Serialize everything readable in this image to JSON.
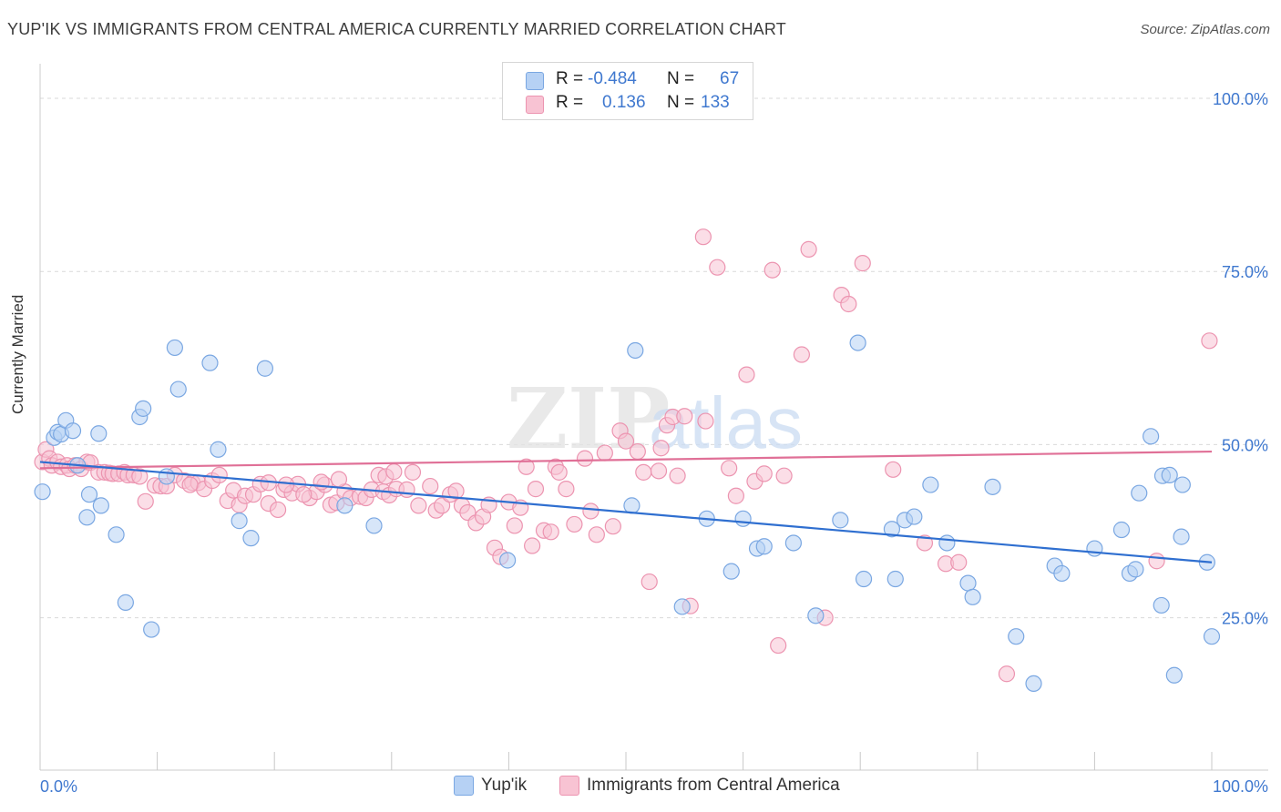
{
  "title": "YUP'IK VS IMMIGRANTS FROM CENTRAL AMERICA CURRENTLY MARRIED CORRELATION CHART",
  "source": "Source: ZipAtlas.com",
  "watermark": {
    "zip": "ZIP",
    "atlas": "atlas"
  },
  "colors": {
    "blue_fill": "#b6d1f4",
    "blue_stroke": "#7aa7e2",
    "blue_line": "#2f6fd0",
    "pink_fill": "#f8c3d3",
    "pink_stroke": "#ec94b0",
    "pink_line": "#e07097",
    "tick_label": "#3f78cf",
    "grid": "#d9d9d9"
  },
  "legend": {
    "row1": {
      "r_label": "R =",
      "r_value": "-0.484",
      "n_label": "N =",
      "n_value": "67"
    },
    "row2": {
      "r_label": "R =",
      "r_value": "0.136",
      "n_label": "N =",
      "n_value": "133"
    }
  },
  "bottom_legend": {
    "series1": "Yup'ik",
    "series2": "Immigrants from Central America"
  },
  "chart_data": {
    "type": "scatter",
    "title": "YUP'IK VS IMMIGRANTS FROM CENTRAL AMERICA CURRENTLY MARRIED CORRELATION CHART",
    "xlabel": "",
    "ylabel": "Currently Married",
    "xlim": [
      0,
      100
    ],
    "ylim": [
      3,
      105
    ],
    "x_tick_labels": [
      "0.0%",
      "100.0%"
    ],
    "y_tick_labels": [
      "25.0%",
      "50.0%",
      "75.0%",
      "100.0%"
    ],
    "y_ticks": [
      25,
      50,
      75,
      100
    ],
    "grid": true,
    "legend_position": "top-center",
    "series": [
      {
        "name": "Yup'ik",
        "trend": {
          "x": [
            0,
            100
          ],
          "y": [
            47.5,
            33.0
          ]
        },
        "points": [
          [
            0.2,
            43.2
          ],
          [
            1.2,
            51.0
          ],
          [
            1.5,
            51.8
          ],
          [
            1.8,
            51.5
          ],
          [
            2.2,
            53.5
          ],
          [
            2.8,
            52.0
          ],
          [
            3.2,
            47.0
          ],
          [
            4.0,
            39.5
          ],
          [
            4.2,
            42.8
          ],
          [
            5.0,
            51.6
          ],
          [
            5.2,
            41.2
          ],
          [
            6.5,
            37.0
          ],
          [
            7.3,
            27.2
          ],
          [
            8.5,
            54.0
          ],
          [
            8.8,
            55.2
          ],
          [
            9.5,
            23.3
          ],
          [
            10.8,
            45.4
          ],
          [
            11.5,
            64.0
          ],
          [
            11.8,
            58.0
          ],
          [
            14.5,
            61.8
          ],
          [
            15.2,
            49.3
          ],
          [
            17.0,
            39.0
          ],
          [
            18.0,
            36.5
          ],
          [
            19.2,
            61.0
          ],
          [
            26.0,
            41.2
          ],
          [
            28.5,
            38.3
          ],
          [
            39.9,
            33.3
          ],
          [
            50.5,
            41.2
          ],
          [
            50.8,
            63.6
          ],
          [
            54.8,
            26.6
          ],
          [
            56.9,
            39.3
          ],
          [
            59.0,
            31.7
          ],
          [
            60.0,
            39.3
          ],
          [
            61.2,
            35.0
          ],
          [
            61.8,
            35.3
          ],
          [
            64.3,
            35.8
          ],
          [
            66.2,
            25.3
          ],
          [
            68.3,
            39.1
          ],
          [
            69.8,
            64.7
          ],
          [
            70.3,
            30.6
          ],
          [
            72.7,
            37.8
          ],
          [
            73.0,
            30.6
          ],
          [
            73.8,
            39.1
          ],
          [
            74.6,
            39.6
          ],
          [
            76.0,
            44.2
          ],
          [
            77.4,
            35.8
          ],
          [
            79.2,
            30.0
          ],
          [
            79.6,
            28.0
          ],
          [
            81.3,
            43.9
          ],
          [
            83.3,
            22.3
          ],
          [
            84.8,
            15.5
          ],
          [
            86.6,
            32.5
          ],
          [
            87.2,
            31.4
          ],
          [
            90.0,
            35.0
          ],
          [
            92.3,
            37.7
          ],
          [
            93.0,
            31.4
          ],
          [
            93.5,
            32.0
          ],
          [
            93.8,
            43.0
          ],
          [
            94.8,
            51.2
          ],
          [
            95.7,
            26.8
          ],
          [
            95.8,
            45.5
          ],
          [
            96.4,
            45.6
          ],
          [
            96.8,
            16.7
          ],
          [
            97.4,
            36.7
          ],
          [
            97.5,
            44.2
          ],
          [
            99.6,
            33.0
          ],
          [
            100.0,
            22.3
          ]
        ]
      },
      {
        "name": "Immigrants from Central America",
        "trend": {
          "x": [
            0,
            100
          ],
          "y": [
            46.6,
            49.0
          ]
        },
        "points": [
          [
            0.2,
            47.5
          ],
          [
            0.5,
            49.3
          ],
          [
            0.8,
            48.0
          ],
          [
            1.0,
            47.0
          ],
          [
            1.5,
            47.5
          ],
          [
            1.8,
            46.8
          ],
          [
            2.3,
            47.0
          ],
          [
            2.5,
            46.5
          ],
          [
            3.0,
            47.0
          ],
          [
            3.5,
            46.5
          ],
          [
            4.0,
            47.5
          ],
          [
            4.3,
            47.4
          ],
          [
            5.0,
            46.0
          ],
          [
            5.5,
            46.0
          ],
          [
            5.9,
            45.9
          ],
          [
            6.2,
            45.8
          ],
          [
            6.7,
            45.8
          ],
          [
            7.2,
            46.0
          ],
          [
            7.5,
            45.6
          ],
          [
            8.0,
            45.6
          ],
          [
            8.5,
            45.4
          ],
          [
            9.0,
            41.8
          ],
          [
            9.8,
            44.1
          ],
          [
            10.3,
            44.0
          ],
          [
            10.8,
            44.0
          ],
          [
            11.5,
            45.6
          ],
          [
            12.3,
            44.8
          ],
          [
            13.0,
            44.5
          ],
          [
            13.5,
            44.5
          ],
          [
            14.0,
            43.6
          ],
          [
            14.7,
            44.8
          ],
          [
            15.3,
            45.6
          ],
          [
            16.0,
            41.9
          ],
          [
            16.5,
            43.4
          ],
          [
            17.0,
            41.3
          ],
          [
            17.5,
            42.6
          ],
          [
            18.2,
            42.8
          ],
          [
            18.8,
            44.3
          ],
          [
            19.5,
            41.5
          ],
          [
            20.3,
            40.6
          ],
          [
            20.8,
            43.5
          ],
          [
            21.5,
            43.0
          ],
          [
            22.0,
            44.3
          ],
          [
            23.0,
            42.3
          ],
          [
            23.6,
            43.2
          ],
          [
            24.3,
            44.2
          ],
          [
            24.8,
            41.3
          ],
          [
            25.3,
            41.6
          ],
          [
            26.0,
            43.2
          ],
          [
            26.5,
            42.3
          ],
          [
            27.3,
            42.5
          ],
          [
            27.8,
            42.3
          ],
          [
            28.3,
            43.5
          ],
          [
            28.9,
            45.6
          ],
          [
            29.3,
            43.2
          ],
          [
            29.8,
            42.7
          ],
          [
            30.4,
            43.6
          ],
          [
            31.3,
            43.5
          ],
          [
            31.8,
            46.0
          ],
          [
            32.3,
            41.2
          ],
          [
            33.3,
            44.0
          ],
          [
            33.8,
            40.5
          ],
          [
            34.3,
            41.2
          ],
          [
            35.0,
            42.8
          ],
          [
            35.5,
            43.3
          ],
          [
            36.0,
            41.2
          ],
          [
            36.5,
            40.2
          ],
          [
            37.2,
            38.7
          ],
          [
            37.8,
            39.6
          ],
          [
            38.3,
            41.3
          ],
          [
            38.8,
            35.1
          ],
          [
            39.3,
            33.8
          ],
          [
            40.0,
            41.7
          ],
          [
            40.5,
            38.3
          ],
          [
            41.0,
            40.9
          ],
          [
            41.5,
            46.8
          ],
          [
            42.0,
            35.4
          ],
          [
            42.3,
            43.6
          ],
          [
            43.0,
            37.6
          ],
          [
            43.6,
            37.4
          ],
          [
            44.0,
            46.8
          ],
          [
            44.3,
            46.0
          ],
          [
            44.9,
            43.6
          ],
          [
            45.6,
            38.5
          ],
          [
            46.5,
            48.0
          ],
          [
            47.0,
            40.4
          ],
          [
            47.5,
            37.0
          ],
          [
            48.2,
            48.8
          ],
          [
            48.9,
            38.2
          ],
          [
            49.5,
            52.0
          ],
          [
            50.0,
            50.5
          ],
          [
            51.0,
            49.0
          ],
          [
            51.5,
            46.0
          ],
          [
            52.0,
            30.2
          ],
          [
            52.8,
            46.2
          ],
          [
            53.5,
            52.8
          ],
          [
            54.0,
            54.0
          ],
          [
            54.4,
            45.5
          ],
          [
            55.0,
            54.1
          ],
          [
            55.5,
            26.7
          ],
          [
            56.8,
            53.4
          ],
          [
            57.8,
            75.6
          ],
          [
            58.8,
            46.6
          ],
          [
            59.4,
            42.6
          ],
          [
            60.3,
            60.1
          ],
          [
            61.0,
            44.7
          ],
          [
            61.8,
            45.8
          ],
          [
            62.5,
            75.2
          ],
          [
            63.0,
            21.0
          ],
          [
            63.5,
            45.5
          ],
          [
            65.0,
            63.0
          ],
          [
            65.6,
            78.2
          ],
          [
            67.0,
            25.0
          ],
          [
            68.4,
            71.6
          ],
          [
            69.0,
            70.3
          ],
          [
            70.2,
            76.2
          ],
          [
            72.8,
            46.4
          ],
          [
            75.5,
            35.8
          ],
          [
            77.3,
            32.8
          ],
          [
            78.4,
            33.0
          ],
          [
            82.5,
            16.9
          ],
          [
            95.3,
            33.2
          ],
          [
            99.8,
            65.0
          ],
          [
            21.0,
            44.2
          ],
          [
            24.0,
            44.6
          ],
          [
            19.5,
            44.5
          ],
          [
            12.8,
            44.2
          ],
          [
            29.5,
            45.4
          ],
          [
            30.2,
            46.1
          ],
          [
            25.5,
            45.0
          ],
          [
            22.5,
            42.8
          ],
          [
            56.6,
            80.0
          ],
          [
            53.0,
            49.5
          ]
        ]
      }
    ]
  }
}
